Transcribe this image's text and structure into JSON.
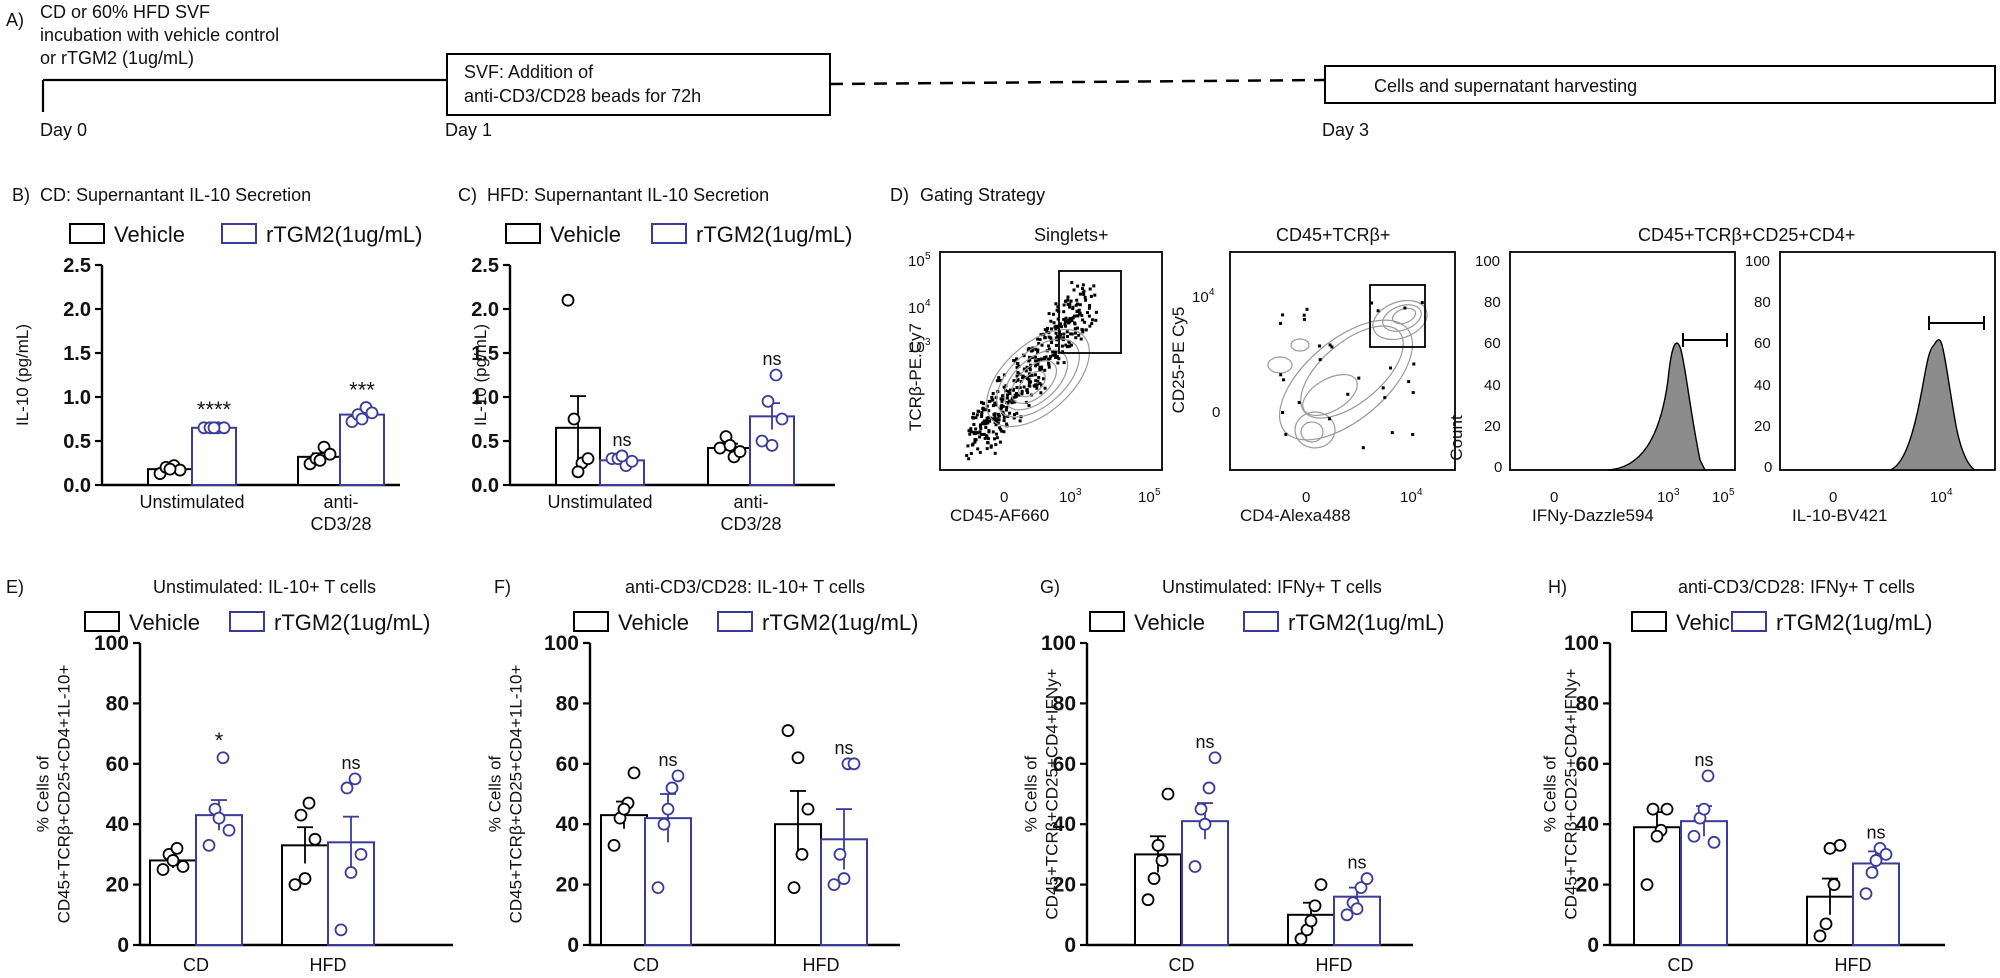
{
  "panel_a": {
    "label": "A)",
    "note_line1": "CD or 60% HFD SVF",
    "note_line2": "incubation with vehicle control",
    "note_line3": "or rTGM2 (1ug/mL)",
    "box1_line1": "SVF: Addition of",
    "box1_line2": "anti-CD3/CD28 beads for 72h",
    "box2_text": "Cells and supernatant harvesting",
    "day0": "Day 0",
    "day1": "Day 1",
    "day3": "Day 3"
  },
  "legend": {
    "vehicle": "Vehicle",
    "rtgm2": "rTGM2(1ug/mL)"
  },
  "colors": {
    "vehicle": "#000000",
    "rtgm2": "#3b3b9b",
    "hist_fill": "#8c8c8c",
    "contour": "#9a9a9a"
  },
  "chart_data": [
    {
      "id": "B",
      "label": "B)",
      "title": "CD: Supernantant IL-10 Secretion",
      "type": "bar",
      "ylabel": "IL-10 (pg/mL)",
      "ylim": [
        0,
        2.5
      ],
      "yticks": [
        "0.0",
        "0.5",
        "1.0",
        "1.5",
        "2.0",
        "2.5"
      ],
      "categories": [
        "Unstimulated",
        "anti-CD3/28"
      ],
      "category_lines": [
        [
          "Unstimulated"
        ],
        [
          "anti-",
          "CD3/28"
        ]
      ],
      "series": [
        {
          "name": "Vehicle",
          "values": [
            0.18,
            0.32
          ],
          "sem": [
            0.03,
            0.04
          ],
          "points": [
            [
              0.13,
              0.2,
              0.22,
              0.17,
              0.18
            ],
            [
              0.24,
              0.3,
              0.43,
              0.35,
              0.28
            ]
          ]
        },
        {
          "name": "rTGM2(1ug/mL)",
          "values": [
            0.65,
            0.8
          ],
          "sem": [
            0.01,
            0.04
          ],
          "points": [
            [
              0.65,
              0.65,
              0.65,
              0.65,
              0.65
            ],
            [
              0.72,
              0.8,
              0.88,
              0.82,
              0.75
            ]
          ]
        }
      ],
      "annotations": [
        "****",
        "***"
      ]
    },
    {
      "id": "C",
      "label": "C)",
      "title": "HFD: Supernantant IL-10 Secretion",
      "type": "bar",
      "ylabel": "IL-10 (pg/mL)",
      "ylim": [
        0,
        2.5
      ],
      "yticks": [
        "0.0",
        "0.5",
        "1.0",
        "1.5",
        "2.0",
        "2.5"
      ],
      "categories": [
        "Unstimulated",
        "anti-CD3/28"
      ],
      "category_lines": [
        [
          "Unstimulated"
        ],
        [
          "anti-",
          "CD3/28"
        ]
      ],
      "series": [
        {
          "name": "Vehicle",
          "values": [
            0.65,
            0.42
          ],
          "sem": [
            0.36,
            0.05
          ],
          "points": [
            [
              2.1,
              0.75,
              0.25,
              0.3,
              0.15
            ],
            [
              0.42,
              0.55,
              0.32,
              0.38,
              0.45
            ]
          ]
        },
        {
          "name": "rTGM2(1ug/mL)",
          "values": [
            0.28,
            0.78
          ],
          "sem": [
            0.03,
            0.15
          ],
          "points": [
            [
              0.3,
              0.3,
              0.22,
              0.27,
              0.33
            ],
            [
              0.5,
              0.95,
              1.25,
              0.75,
              0.45
            ]
          ]
        }
      ],
      "annotations": [
        "ns",
        "ns"
      ]
    },
    {
      "id": "E",
      "label": "E)",
      "title": "Unstimulated: IL-10+ T cells",
      "type": "bar",
      "ylabel": "CD45+TCRβ+CD25+CD4+1L-10+",
      "ylabel_prefix": "% Cells of",
      "ylim": [
        0,
        100
      ],
      "yticks": [
        "0",
        "20",
        "40",
        "60",
        "80",
        "100"
      ],
      "categories": [
        "CD",
        "HFD"
      ],
      "series": [
        {
          "name": "Vehicle",
          "values": [
            28,
            33
          ],
          "sem": [
            2.5,
            6
          ],
          "points": [
            [
              25,
              30,
              32,
              26,
              28
            ],
            [
              20,
              43,
              47,
              35,
              22
            ]
          ]
        },
        {
          "name": "rTGM2(1ug/mL)",
          "values": [
            43,
            34
          ],
          "sem": [
            5,
            8.5
          ],
          "points": [
            [
              33,
              45,
              62,
              38,
              42
            ],
            [
              5,
              52,
              55,
              30,
              24
            ]
          ]
        }
      ],
      "annotations": [
        "*",
        "ns"
      ]
    },
    {
      "id": "F",
      "label": "F)",
      "title": "anti-CD3/CD28: IL-10+ T cells",
      "type": "bar",
      "ylabel": "CD45+TCRβ+CD25+CD4+1L-10+",
      "ylabel_prefix": "% Cells of",
      "ylim": [
        0,
        100
      ],
      "yticks": [
        "0",
        "20",
        "40",
        "60",
        "80",
        "100"
      ],
      "categories": [
        "CD",
        "HFD"
      ],
      "series": [
        {
          "name": "Vehicle",
          "values": [
            43,
            40
          ],
          "sem": [
            4.5,
            11
          ],
          "points": [
            [
              33,
              42,
              47,
              57,
              45
            ],
            [
              71,
              19,
              30,
              45,
              62
            ]
          ]
        },
        {
          "name": "rTGM2(1ug/mL)",
          "values": [
            42,
            35
          ],
          "sem": [
            8,
            10
          ],
          "points": [
            [
              19,
              40,
              52,
              56,
              45
            ],
            [
              20,
              30,
              60,
              60,
              22
            ]
          ]
        }
      ],
      "annotations": [
        "ns",
        "ns"
      ]
    },
    {
      "id": "G",
      "label": "G)",
      "title": "Unstimulated: IFNy+ T cells",
      "type": "bar",
      "ylabel": "CD45+TCRβ+CD25+CD4+IFNy+",
      "ylabel_prefix": "% Cells of",
      "ylim": [
        0,
        100
      ],
      "yticks": [
        "0",
        "20",
        "40",
        "60",
        "80",
        "100"
      ],
      "categories": [
        "CD",
        "HFD"
      ],
      "series": [
        {
          "name": "Vehicle",
          "values": [
            30,
            10
          ],
          "sem": [
            6,
            4
          ],
          "points": [
            [
              15,
              22,
              28,
              50,
              33
            ],
            [
              2,
              5,
              13,
              20,
              8
            ]
          ]
        },
        {
          "name": "rTGM2(1ug/mL)",
          "values": [
            41,
            16
          ],
          "sem": [
            6,
            3
          ],
          "points": [
            [
              26,
              45,
              52,
              62,
              40
            ],
            [
              10,
              14,
              19,
              22,
              12
            ]
          ]
        }
      ],
      "annotations": [
        "ns",
        "ns"
      ]
    },
    {
      "id": "H",
      "label": "H)",
      "title": "anti-CD3/CD28: IFNy+ T cells",
      "type": "bar",
      "ylabel": "CD45+TCRβ+CD25+CD4+IFNy+",
      "ylabel_prefix": "% Cells of",
      "ylim": [
        0,
        100
      ],
      "yticks": [
        "0",
        "20",
        "40",
        "60",
        "80",
        "100"
      ],
      "categories": [
        "CD",
        "HFD"
      ],
      "series": [
        {
          "name": "Vehicle",
          "values": [
            39,
            16
          ],
          "sem": [
            5,
            6
          ],
          "points": [
            [
              20,
              45,
              38,
              45,
              36
            ],
            [
              3,
              7,
              20,
              33,
              32
            ]
          ]
        },
        {
          "name": "rTGM2(1ug/mL)",
          "values": [
            41,
            27
          ],
          "sem": [
            5,
            4
          ],
          "points": [
            [
              36,
              42,
              56,
              34,
              45
            ],
            [
              17,
              24,
              32,
              30,
              28
            ]
          ]
        }
      ],
      "annotations": [
        "ns",
        "ns"
      ]
    }
  ],
  "gating": {
    "label": "D)",
    "title": "Gating Strategy",
    "plots": [
      {
        "name": "singlets",
        "title": "Singlets+",
        "xlabel": "CD45-AF660",
        "ylabel": "TCRβ-PE.Cy7",
        "xticks": [
          "0",
          "10",
          "10"
        ],
        "xtick_exp": [
          "",
          "3",
          "5"
        ],
        "yticks": [
          "10",
          "10",
          "10"
        ],
        "ytick_exp": [
          "5",
          "4",
          "3"
        ]
      },
      {
        "name": "cd45-tcrb",
        "title": "CD45+TCRβ+",
        "xlabel": "CD4-Alexa488",
        "ylabel": "CD25-PE Cy5",
        "xticks": [
          "0",
          "10"
        ],
        "xtick_exp": [
          "",
          "4"
        ],
        "yticks": [
          "10",
          "0"
        ],
        "ytick_exp": [
          "4",
          ""
        ]
      },
      {
        "name": "ifny-hist",
        "title": "CD45+TCRβ+CD25+CD4+",
        "xlabel": "IFNy-Dazzle594",
        "ylabel": "Count",
        "xticks": [
          "0",
          "10",
          "10"
        ],
        "xtick_exp": [
          "",
          "3",
          "5"
        ],
        "yticks": [
          "100",
          "80",
          "60",
          "40",
          "20",
          "0"
        ]
      },
      {
        "name": "il10-hist",
        "title": "",
        "xlabel": "IL-10-BV421",
        "ylabel": "",
        "xticks": [
          "0",
          "10"
        ],
        "xtick_exp": [
          "",
          "4"
        ],
        "yticks": [
          "100",
          "80",
          "60",
          "40",
          "20",
          "0"
        ]
      }
    ]
  }
}
